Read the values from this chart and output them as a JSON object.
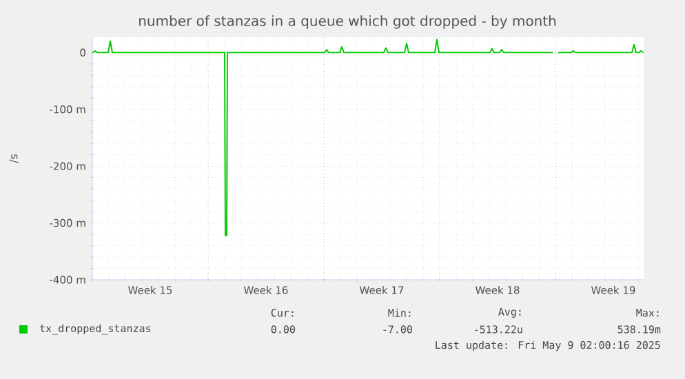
{
  "chart_data": {
    "type": "line",
    "title": "number of stanzas in a queue which got dropped - by month",
    "ylabel": "/s",
    "series": [
      {
        "name": "tx_dropped_stanzas",
        "color": "#00cc00",
        "x": [
          "2025-04-07T00:00",
          "2025-04-07T01:00",
          "2025-04-07T04:00",
          "2025-04-07T07:00",
          "2025-04-07T23:00",
          "2025-04-08T02:00",
          "2025-04-08T05:00",
          "2025-04-15T00:00",
          "2025-04-15T01:00",
          "2025-04-15T03:00",
          "2025-04-15T04:00",
          "2025-04-21T01:00",
          "2025-04-21T04:00",
          "2025-04-21T07:00",
          "2025-04-21T23:00",
          "2025-04-22T02:00",
          "2025-04-22T05:00",
          "2025-04-24T15:00",
          "2025-04-24T18:00",
          "2025-04-24T21:00",
          "2025-04-25T21:00",
          "2025-04-26T00:00",
          "2025-04-26T03:00",
          "2025-04-27T17:00",
          "2025-04-27T20:00",
          "2025-04-27T23:00",
          "2025-05-01T01:00",
          "2025-05-01T04:00",
          "2025-05-01T07:00",
          "2025-05-01T15:00",
          "2025-05-01T18:00",
          "2025-05-01T21:00",
          "2025-05-04T20:00",
          "2025-05-05T00:00",
          "2025-05-05T04:00",
          "2025-05-05T23:00",
          "2025-05-06T02:00",
          "2025-05-06T05:00",
          "2025-05-09T15:00",
          "2025-05-09T18:00",
          "2025-05-09T21:00",
          "2025-05-10T01:00",
          "2025-05-10T04:00",
          "2025-05-10T08:00"
        ],
        "values": [
          0,
          0,
          3,
          0,
          0,
          20,
          0,
          0,
          -322,
          -322,
          0,
          0,
          5,
          0,
          0,
          10,
          0,
          0,
          8,
          0,
          0,
          16,
          0,
          0,
          23,
          0,
          0,
          7,
          0,
          0,
          5,
          0,
          0,
          null,
          0,
          0,
          3,
          0,
          0,
          14,
          0,
          0,
          3,
          0
        ]
      }
    ],
    "xlim": [
      "2025-04-07T00:00",
      "2025-05-10T08:00"
    ],
    "xticks": [
      {
        "value": "2025-04-07T00:00",
        "label": null
      },
      {
        "value": "2025-04-10T12:00",
        "label": "Week 15"
      },
      {
        "value": "2025-04-14T00:00",
        "label": null
      },
      {
        "value": "2025-04-17T12:00",
        "label": "Week 16"
      },
      {
        "value": "2025-04-21T00:00",
        "label": null
      },
      {
        "value": "2025-04-24T12:00",
        "label": "Week 17"
      },
      {
        "value": "2025-04-28T00:00",
        "label": null
      },
      {
        "value": "2025-05-01T12:00",
        "label": "Week 18"
      },
      {
        "value": "2025-05-05T00:00",
        "label": null
      },
      {
        "value": "2025-05-08T12:00",
        "label": "Week 19"
      }
    ],
    "ylim": [
      -400,
      27
    ],
    "yticks": [
      {
        "value": -400,
        "label": "-400 m"
      },
      {
        "value": -300,
        "label": "-300 m"
      },
      {
        "value": -200,
        "label": "-200 m"
      },
      {
        "value": -100,
        "label": "-100 m"
      },
      0
    ],
    "grid": true,
    "legend": "bottom",
    "marker": "none",
    "line_style": "solid",
    "annotations": [
      "Cur:",
      "0.00",
      "Min:",
      "-7.00",
      "Avg:",
      "-513.22u",
      "Max:",
      "538.19m",
      "Last update: Fri May  9 02:00:16 2025"
    ]
  }
}
